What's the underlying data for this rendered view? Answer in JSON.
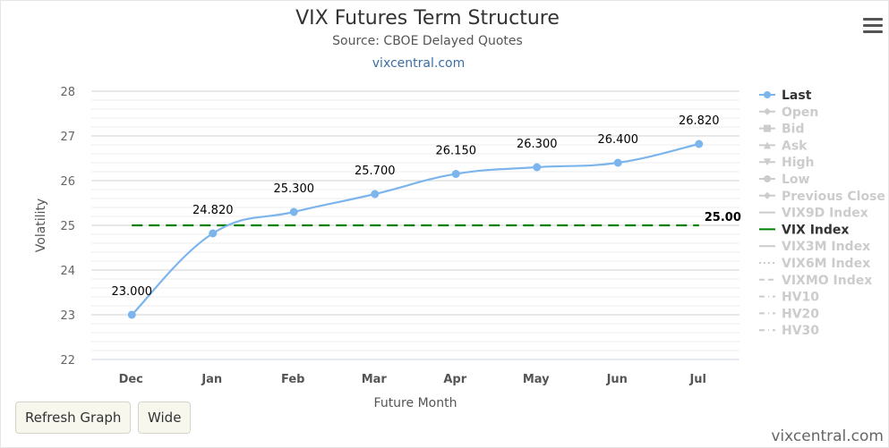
{
  "chart_data": {
    "type": "line",
    "title": "VIX Futures Term Structure",
    "subtitle": "Source: CBOE Delayed Quotes",
    "credit_top": "vixcentral.com",
    "xlabel": "Future Month",
    "ylabel": "Volatility",
    "categories": [
      "Dec",
      "Jan",
      "Feb",
      "Mar",
      "Apr",
      "May",
      "Jun",
      "Jul"
    ],
    "ylim": [
      22,
      28
    ],
    "yticks": [
      "22",
      "23",
      "24",
      "25",
      "26",
      "27",
      "28"
    ],
    "series": [
      {
        "name": "Last",
        "values": [
          23.0,
          24.82,
          25.3,
          25.7,
          26.15,
          26.3,
          26.4,
          26.82
        ],
        "labels": [
          "23.000",
          "24.820",
          "25.300",
          "25.700",
          "26.150",
          "26.300",
          "26.400",
          "26.820"
        ],
        "color": "#7cb5ec"
      },
      {
        "name": "VIX Index",
        "value": 25.0,
        "label": "25.00",
        "color": "#008000"
      }
    ],
    "legend": {
      "position": "right",
      "items": [
        {
          "name": "Last",
          "active": true,
          "symbol": "circle"
        },
        {
          "name": "Open",
          "active": false,
          "symbol": "diamond"
        },
        {
          "name": "Bid",
          "active": false,
          "symbol": "square"
        },
        {
          "name": "Ask",
          "active": false,
          "symbol": "triangle"
        },
        {
          "name": "High",
          "active": false,
          "symbol": "triangle-down"
        },
        {
          "name": "Low",
          "active": false,
          "symbol": "circle"
        },
        {
          "name": "Previous Close",
          "active": false,
          "symbol": "diamond"
        },
        {
          "name": "VIX9D Index",
          "active": false,
          "symbol": "solid"
        },
        {
          "name": "VIX Index",
          "active": true,
          "symbol": "solid"
        },
        {
          "name": "VIX3M Index",
          "active": false,
          "symbol": "solid"
        },
        {
          "name": "VIX6M Index",
          "active": false,
          "symbol": "dotted"
        },
        {
          "name": "VIXMO Index",
          "active": false,
          "symbol": "dashed"
        },
        {
          "name": "HV10",
          "active": false,
          "symbol": "dashdot"
        },
        {
          "name": "HV20",
          "active": false,
          "symbol": "dashdot"
        },
        {
          "name": "HV30",
          "active": false,
          "symbol": "dashdot"
        }
      ]
    },
    "grid": true
  },
  "buttons": {
    "refresh_label": "Refresh Graph",
    "wide_label": "Wide"
  },
  "credit_bottom": "vixcentral.com",
  "icons": {
    "menu": "hamburger-menu-icon"
  }
}
